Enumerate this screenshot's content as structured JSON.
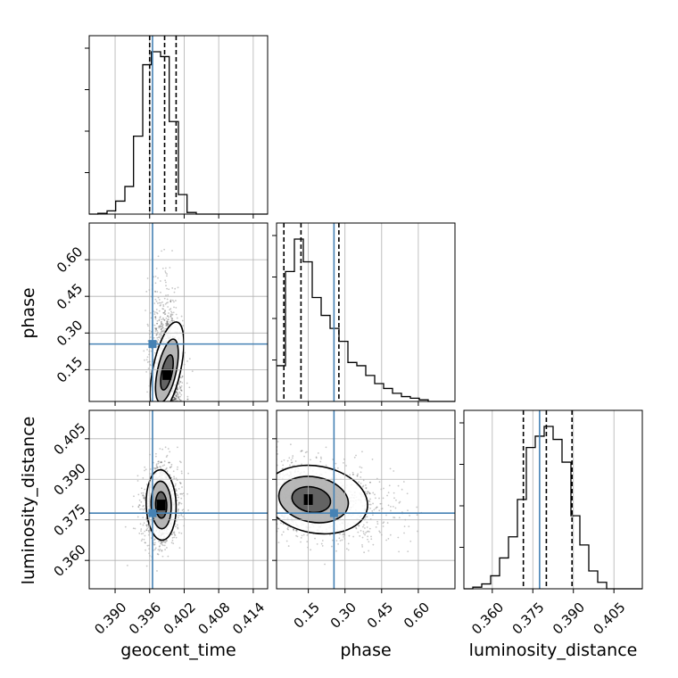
{
  "chart_data": {
    "type": "corner",
    "parameters": [
      "geocent_time",
      "phase",
      "luminosity_distance"
    ],
    "axis_labels": {
      "geocent_time": "geocent_time",
      "phase": "phase",
      "luminosity_distance": "luminosity_distance"
    },
    "ranges": {
      "geocent_time": [
        0.3855,
        0.4165
      ],
      "phase": [
        0.02,
        0.75
      ],
      "luminosity_distance": [
        0.3495,
        0.4155
      ]
    },
    "ticks": {
      "geocent_time": [
        0.39,
        0.396,
        0.402,
        0.408,
        0.414
      ],
      "phase": [
        0.15,
        0.3,
        0.45,
        0.6
      ],
      "luminosity_distance": [
        0.36,
        0.375,
        0.39,
        0.405
      ]
    },
    "tick_labels": {
      "geocent_time": [
        "0.390",
        "0.396",
        "0.402",
        "0.408",
        "0.414"
      ],
      "phase": [
        "0.15",
        "0.30",
        "0.45",
        "0.60"
      ],
      "luminosity_distance": [
        "0.360",
        "0.375",
        "0.390",
        "0.405"
      ]
    },
    "truths": {
      "geocent_time": 0.3965,
      "phase": 0.255,
      "luminosity_distance": 0.3775
    },
    "quantiles": {
      "geocent_time": [
        0.396,
        0.3986,
        0.4006
      ],
      "phase": [
        0.05,
        0.12,
        0.275
      ],
      "luminosity_distance": [
        0.3715,
        0.38,
        0.3895
      ]
    },
    "histograms": {
      "geocent_time": {
        "edges": [
          0.3855,
          0.387,
          0.3886,
          0.3901,
          0.3917,
          0.3932,
          0.3948,
          0.3963,
          0.3979,
          0.3994,
          0.401,
          0.4025,
          0.4041,
          0.4056,
          0.4072,
          0.4087,
          0.4103,
          0.4118,
          0.4134,
          0.4149,
          0.4165
        ],
        "counts": [
          0,
          0.5,
          2,
          8,
          17,
          48,
          92,
          100,
          97,
          57,
          12,
          1,
          0,
          0,
          0,
          0,
          0,
          0,
          0,
          0
        ]
      },
      "phase": {
        "edges": [
          0.02,
          0.0565,
          0.093,
          0.1295,
          0.166,
          0.2025,
          0.239,
          0.2755,
          0.312,
          0.3485,
          0.385,
          0.4215,
          0.458,
          0.4945,
          0.531,
          0.5675,
          0.604,
          0.6405,
          0.677,
          0.7135,
          0.75
        ],
        "counts": [
          22,
          80,
          100,
          86,
          64,
          53,
          45,
          37,
          24,
          22,
          16,
          11,
          8,
          5,
          3,
          2,
          1,
          0,
          0,
          0
        ]
      },
      "luminosity_distance": {
        "edges": [
          0.3495,
          0.3528,
          0.3561,
          0.3594,
          0.3627,
          0.366,
          0.3693,
          0.3726,
          0.3759,
          0.3792,
          0.3825,
          0.3858,
          0.3891,
          0.3924,
          0.3957,
          0.399,
          0.4023,
          0.4056,
          0.4089,
          0.4122,
          0.4155
        ],
        "counts": [
          0,
          1,
          3,
          8,
          19,
          32,
          55,
          87,
          94,
          100,
          92,
          78,
          45,
          27,
          11,
          4,
          0,
          0,
          0,
          0
        ]
      }
    },
    "colors": {
      "truth": "#4682b4",
      "hist": "#000000",
      "grid": "#b0b0b0"
    },
    "grid": true
  }
}
